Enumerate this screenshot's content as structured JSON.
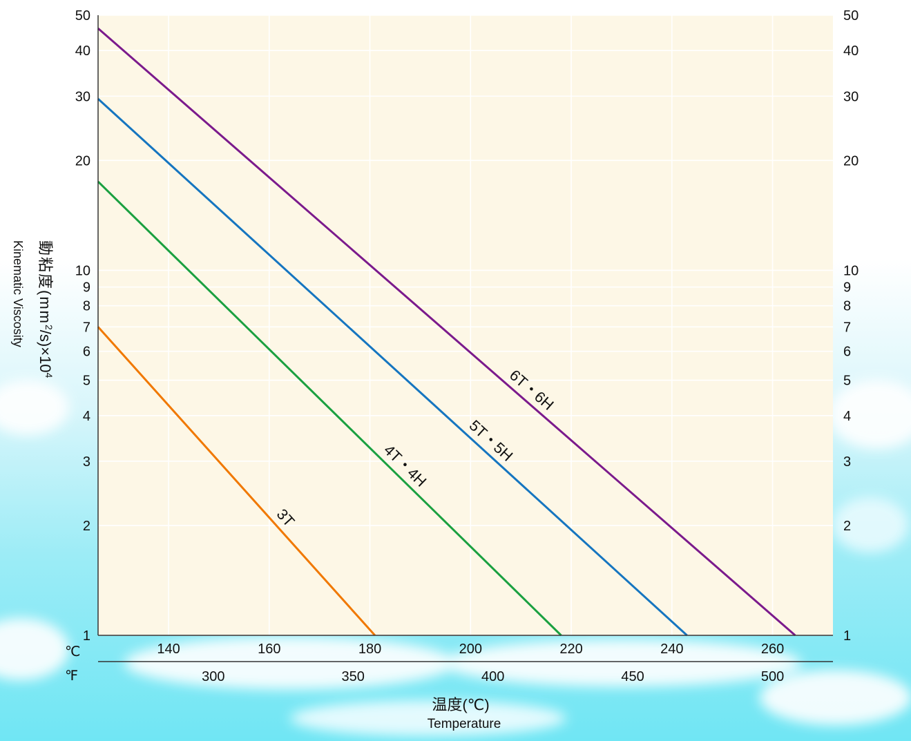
{
  "chart_data": {
    "type": "line",
    "y_scale": "log",
    "ylim": [
      1,
      50
    ],
    "xlim_celsius": [
      126,
      272
    ],
    "y_ticks": [
      1,
      2,
      3,
      4,
      5,
      6,
      7,
      8,
      9,
      10,
      20,
      30,
      40,
      50
    ],
    "y_tick_labels": [
      "1",
      "2",
      "3",
      "4",
      "5",
      "6",
      "7",
      "8",
      "9",
      "10",
      "20",
      "30",
      "40",
      "50"
    ],
    "x_ticks_celsius": [
      140,
      160,
      180,
      200,
      220,
      240,
      260
    ],
    "x_tick_labels_celsius": [
      "140",
      "160",
      "180",
      "200",
      "220",
      "240",
      "260"
    ],
    "x_ticks_fahrenheit": [
      300,
      350,
      400,
      450,
      500
    ],
    "x_tick_labels_fahrenheit": [
      "300",
      "350",
      "400",
      "450",
      "500"
    ],
    "celsius_unit": "℃",
    "fahrenheit_unit": "℉",
    "xlabel": "温度(℃)",
    "xlabel_en": "Temperature",
    "ylabel_prefix": "動粘度(mm",
    "ylabel_sup1": "2",
    "ylabel_mid": "/s)×10",
    "ylabel_sup2": "4",
    "ylabel_en": "Kinematic Viscosity",
    "grid": true,
    "series": [
      {
        "name": "3T",
        "color": "#f07800",
        "x": [
          126,
          181
        ],
        "y": [
          7,
          1
        ]
      },
      {
        "name": "4T・4H",
        "color": "#1aa040",
        "x": [
          126,
          218
        ],
        "y": [
          17.5,
          1
        ]
      },
      {
        "name": "5T・5H",
        "color": "#1575c0",
        "x": [
          126,
          243
        ],
        "y": [
          29.5,
          1
        ]
      },
      {
        "name": "6T・6H",
        "color": "#7b1a8c",
        "x": [
          126,
          264.5
        ],
        "y": [
          46,
          1
        ]
      }
    ]
  }
}
